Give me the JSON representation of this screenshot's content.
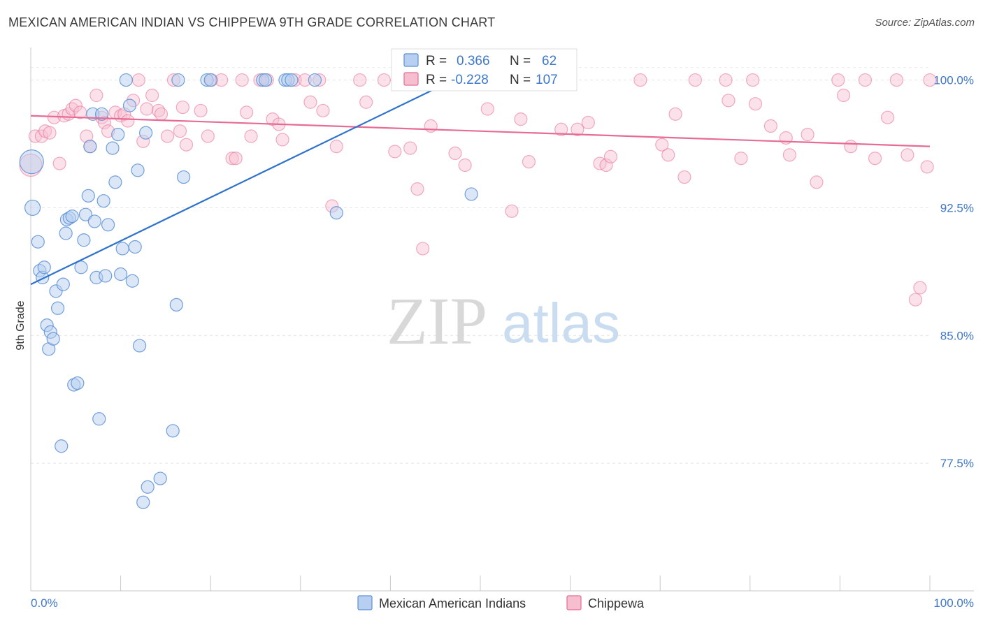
{
  "title": "MEXICAN AMERICAN INDIAN VS CHIPPEWA 9TH GRADE CORRELATION CHART",
  "source": "Source: ZipAtlas.com",
  "colors": {
    "blue": "#5b8fd6",
    "blue_fill": "#b7cff0",
    "pink": "#e86b94",
    "pink_fill": "#f6bfd0",
    "tick": "#3f78c9"
  },
  "chart_data": {
    "type": "scatter",
    "ylabel": "9th Grade",
    "xlim": [
      0,
      100
    ],
    "ylim": [
      70.0,
      101.5
    ],
    "x_ticks": [
      "0.0%",
      "100.0%"
    ],
    "y_ticks": [
      {
        "value": 100.0,
        "label": "100.0%"
      },
      {
        "value": 92.5,
        "label": "92.5%"
      },
      {
        "value": 85.0,
        "label": "85.0%"
      },
      {
        "value": 77.5,
        "label": "77.5%"
      }
    ],
    "legend": {
      "rows": [
        {
          "r_label": "R =",
          "r_value": "0.366",
          "n_label": "N =",
          "n_value": "62"
        },
        {
          "r_label": "R =",
          "r_value": "-0.228",
          "n_label": "N =",
          "n_value": "107"
        }
      ]
    },
    "series": [
      {
        "name": "Mexican American Indians",
        "trend": [
          [
            0.0,
            88.0
          ],
          [
            47.0,
            100.0
          ]
        ],
        "points": [
          [
            0.1,
            95.2
          ],
          [
            0.2,
            92.5
          ],
          [
            0.8,
            90.5
          ],
          [
            1.0,
            88.8
          ],
          [
            1.3,
            88.4
          ],
          [
            1.5,
            89.0
          ],
          [
            1.8,
            85.6
          ],
          [
            2.0,
            84.2
          ],
          [
            2.2,
            85.2
          ],
          [
            2.5,
            84.8
          ],
          [
            2.8,
            87.6
          ],
          [
            3.0,
            86.6
          ],
          [
            3.4,
            78.5
          ],
          [
            3.6,
            88.0
          ],
          [
            3.9,
            91.0
          ],
          [
            4.0,
            91.8
          ],
          [
            4.3,
            91.9
          ],
          [
            4.6,
            92.0
          ],
          [
            4.8,
            82.1
          ],
          [
            5.2,
            82.2
          ],
          [
            5.6,
            89.0
          ],
          [
            5.9,
            90.6
          ],
          [
            6.1,
            92.1
          ],
          [
            6.4,
            93.2
          ],
          [
            6.6,
            96.1
          ],
          [
            6.9,
            98.0
          ],
          [
            7.1,
            91.7
          ],
          [
            7.3,
            88.4
          ],
          [
            7.6,
            80.1
          ],
          [
            7.9,
            98.0
          ],
          [
            8.1,
            92.9
          ],
          [
            8.3,
            88.5
          ],
          [
            8.6,
            91.5
          ],
          [
            9.1,
            96.0
          ],
          [
            9.4,
            94.0
          ],
          [
            9.7,
            96.8
          ],
          [
            10.0,
            88.6
          ],
          [
            10.2,
            90.1
          ],
          [
            10.6,
            100.0
          ],
          [
            11.0,
            98.5
          ],
          [
            11.3,
            88.2
          ],
          [
            11.6,
            90.2
          ],
          [
            11.9,
            94.7
          ],
          [
            12.1,
            84.4
          ],
          [
            12.5,
            75.2
          ],
          [
            12.8,
            96.9
          ],
          [
            13.0,
            76.1
          ],
          [
            14.4,
            76.6
          ],
          [
            15.8,
            79.4
          ],
          [
            16.2,
            86.8
          ],
          [
            16.4,
            100.0
          ],
          [
            17.0,
            94.3
          ],
          [
            19.6,
            100.0
          ],
          [
            20.0,
            100.0
          ],
          [
            25.8,
            100.0
          ],
          [
            26.1,
            100.0
          ],
          [
            28.3,
            100.0
          ],
          [
            28.6,
            100.0
          ],
          [
            29.0,
            100.0
          ],
          [
            31.6,
            100.0
          ],
          [
            34.0,
            92.2
          ],
          [
            49.0,
            93.3
          ]
        ]
      },
      {
        "name": "Chippewa",
        "trend": [
          [
            0.0,
            97.9
          ],
          [
            100.0,
            96.1
          ]
        ],
        "points": [
          [
            0.0,
            95.0
          ],
          [
            0.5,
            96.7
          ],
          [
            1.2,
            96.7
          ],
          [
            1.6,
            97.0
          ],
          [
            2.1,
            96.9
          ],
          [
            2.6,
            97.8
          ],
          [
            3.2,
            95.1
          ],
          [
            3.7,
            97.9
          ],
          [
            4.2,
            98.0
          ],
          [
            4.6,
            98.3
          ],
          [
            5.0,
            98.5
          ],
          [
            5.5,
            98.1
          ],
          [
            6.2,
            96.7
          ],
          [
            6.6,
            96.1
          ],
          [
            7.3,
            99.1
          ],
          [
            7.9,
            97.8
          ],
          [
            8.2,
            97.5
          ],
          [
            8.6,
            97.0
          ],
          [
            9.4,
            98.1
          ],
          [
            10.0,
            97.9
          ],
          [
            10.4,
            98.0
          ],
          [
            10.8,
            97.6
          ],
          [
            11.4,
            98.8
          ],
          [
            12.0,
            100.0
          ],
          [
            12.5,
            96.4
          ],
          [
            12.9,
            98.3
          ],
          [
            13.5,
            99.1
          ],
          [
            14.2,
            98.2
          ],
          [
            14.5,
            98.0
          ],
          [
            15.2,
            96.7
          ],
          [
            15.9,
            100.0
          ],
          [
            16.6,
            97.0
          ],
          [
            16.9,
            98.4
          ],
          [
            17.3,
            96.2
          ],
          [
            18.9,
            98.2
          ],
          [
            19.7,
            96.7
          ],
          [
            20.1,
            100.0
          ],
          [
            21.2,
            100.0
          ],
          [
            22.4,
            95.4
          ],
          [
            22.8,
            95.4
          ],
          [
            23.5,
            100.0
          ],
          [
            24.0,
            98.1
          ],
          [
            24.5,
            96.7
          ],
          [
            25.5,
            100.0
          ],
          [
            26.3,
            100.0
          ],
          [
            26.9,
            97.7
          ],
          [
            27.6,
            97.4
          ],
          [
            28.0,
            96.5
          ],
          [
            29.4,
            100.0
          ],
          [
            30.5,
            100.0
          ],
          [
            31.1,
            98.7
          ],
          [
            32.1,
            100.0
          ],
          [
            32.5,
            98.2
          ],
          [
            33.5,
            92.6
          ],
          [
            34.0,
            96.1
          ],
          [
            36.6,
            100.0
          ],
          [
            37.3,
            98.7
          ],
          [
            39.3,
            100.0
          ],
          [
            40.5,
            95.8
          ],
          [
            42.2,
            96.0
          ],
          [
            43.0,
            93.6
          ],
          [
            43.6,
            90.1
          ],
          [
            44.5,
            97.3
          ],
          [
            47.2,
            95.7
          ],
          [
            48.3,
            95.0
          ],
          [
            50.5,
            100.0
          ],
          [
            50.8,
            98.3
          ],
          [
            51.8,
            100.0
          ],
          [
            53.1,
            100.0
          ],
          [
            53.5,
            92.3
          ],
          [
            54.5,
            97.7
          ],
          [
            55.4,
            95.2
          ],
          [
            57.1,
            100.0
          ],
          [
            59.0,
            97.1
          ],
          [
            60.8,
            97.1
          ],
          [
            62.0,
            97.5
          ],
          [
            63.3,
            95.1
          ],
          [
            64.0,
            95.0
          ],
          [
            64.5,
            95.5
          ],
          [
            67.8,
            100.0
          ],
          [
            70.2,
            96.2
          ],
          [
            70.9,
            95.6
          ],
          [
            71.7,
            98.0
          ],
          [
            72.7,
            94.3
          ],
          [
            73.9,
            100.0
          ],
          [
            77.3,
            100.0
          ],
          [
            77.6,
            98.8
          ],
          [
            79.0,
            95.4
          ],
          [
            80.3,
            100.0
          ],
          [
            80.6,
            98.6
          ],
          [
            82.3,
            97.3
          ],
          [
            84.0,
            96.6
          ],
          [
            84.4,
            95.6
          ],
          [
            86.4,
            96.8
          ],
          [
            87.4,
            94.0
          ],
          [
            89.8,
            100.0
          ],
          [
            90.4,
            99.1
          ],
          [
            91.2,
            96.1
          ],
          [
            92.8,
            100.0
          ],
          [
            93.9,
            95.4
          ],
          [
            95.3,
            97.8
          ],
          [
            96.3,
            100.0
          ],
          [
            97.5,
            95.6
          ],
          [
            98.4,
            87.1
          ],
          [
            98.9,
            87.8
          ],
          [
            99.7,
            94.9
          ],
          [
            100.0,
            100.0
          ]
        ]
      }
    ]
  },
  "watermark": {
    "zip": "ZIP",
    "atlas": "atlas"
  }
}
